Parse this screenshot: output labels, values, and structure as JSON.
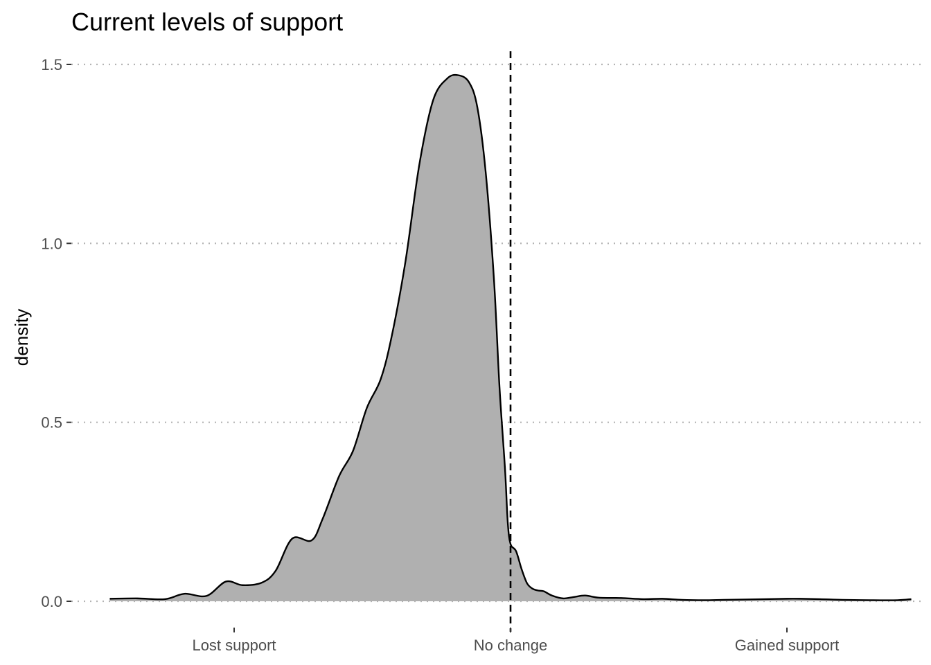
{
  "chart_data": {
    "type": "area",
    "title": "Current levels of support",
    "xlabel": "",
    "ylabel": "density",
    "xlim": [
      -1.5,
      1.5
    ],
    "ylim": [
      0,
      1.5
    ],
    "grid": {
      "horizontal": true,
      "vertical": false,
      "style": "dotted"
    },
    "y_ticks": [
      {
        "value": 0.0,
        "label": "0.0"
      },
      {
        "value": 0.5,
        "label": "0.5"
      },
      {
        "value": 1.0,
        "label": "1.0"
      },
      {
        "value": 1.5,
        "label": "1.5"
      }
    ],
    "x_ticks": [
      {
        "value": -1,
        "label": "Lost support"
      },
      {
        "value": 0,
        "label": "No change"
      },
      {
        "value": 1,
        "label": "Gained support"
      }
    ],
    "reference_line": {
      "x": 0,
      "style": "dashed"
    },
    "colors": {
      "fill": "#b0b0b0",
      "line": "#000000",
      "grid": "#b3b3b3"
    },
    "x": [
      -1.45,
      -1.35,
      -1.25,
      -1.18,
      -1.1,
      -1.03,
      -0.97,
      -0.9,
      -0.85,
      -0.79,
      -0.72,
      -0.68,
      -0.62,
      -0.57,
      -0.52,
      -0.47,
      -0.43,
      -0.38,
      -0.33,
      -0.28,
      -0.23,
      -0.19,
      -0.15,
      -0.12,
      -0.09,
      -0.06,
      -0.04,
      -0.02,
      -0.01,
      0.0,
      0.02,
      0.04,
      0.06,
      0.08,
      0.1,
      0.12,
      0.15,
      0.19,
      0.23,
      0.27,
      0.32,
      0.4,
      0.48,
      0.55,
      0.62,
      0.7,
      0.77,
      0.85,
      0.92,
      1.0,
      1.05,
      1.12,
      1.2,
      1.3,
      1.4,
      1.45
    ],
    "y": [
      0.007,
      0.008,
      0.006,
      0.021,
      0.015,
      0.055,
      0.045,
      0.052,
      0.085,
      0.175,
      0.17,
      0.23,
      0.35,
      0.42,
      0.54,
      0.62,
      0.74,
      0.95,
      1.22,
      1.4,
      1.46,
      1.47,
      1.45,
      1.38,
      1.2,
      0.9,
      0.6,
      0.37,
      0.22,
      0.16,
      0.14,
      0.09,
      0.05,
      0.035,
      0.03,
      0.028,
      0.016,
      0.008,
      0.012,
      0.016,
      0.01,
      0.009,
      0.006,
      0.007,
      0.004,
      0.003,
      0.004,
      0.005,
      0.006,
      0.007,
      0.007,
      0.006,
      0.004,
      0.003,
      0.003,
      0.006
    ]
  }
}
